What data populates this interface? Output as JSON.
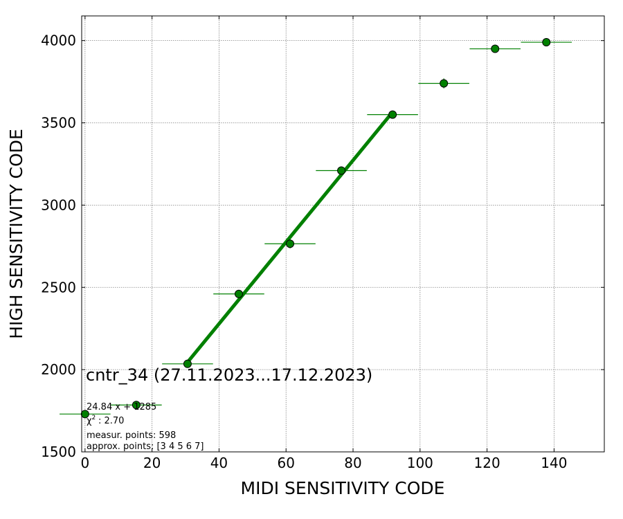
{
  "chart_data": {
    "type": "scatter",
    "title": "cntr_34 (27.11.2023...17.12.2023)",
    "xlabel": "MIDI SENSITIVITY CODE",
    "ylabel": "HIGH SENSITIVITY CODE",
    "xlim": [
      -1,
      155
    ],
    "ylim": [
      1500,
      4150
    ],
    "xticks": [
      0,
      20,
      40,
      60,
      80,
      100,
      120,
      140
    ],
    "yticks": [
      1500,
      2000,
      2500,
      3000,
      3500,
      4000
    ],
    "grid": true,
    "series": [
      {
        "x": [
          0,
          15.3,
          30.6,
          45.9,
          61.2,
          76.5,
          91.8,
          107.1,
          122.4,
          137.7
        ],
        "y": [
          1730,
          1785,
          2035,
          2460,
          2765,
          3210,
          3550,
          3740,
          3950,
          3990
        ],
        "xerr": [
          7.6,
          7.6,
          7.6,
          7.6,
          7.6,
          7.6,
          7.6,
          7.6,
          7.6,
          7.6
        ],
        "yerr": [
          8,
          8,
          10,
          14,
          28,
          20,
          22,
          30,
          10,
          8
        ]
      }
    ],
    "fit": {
      "slope": 24.84,
      "intercept": 1285,
      "x_range": [
        30.6,
        91.8
      ]
    },
    "annotations": {
      "fit_label": "24.84 x + 1285",
      "chi2_label": ": 2.70",
      "measur_label": "measur. points: 598",
      "approx_label": "approx. points: [3 4 5 6 7]"
    },
    "colors": {
      "marker": "#008000",
      "line": "#008000",
      "grid": "#808080"
    }
  }
}
